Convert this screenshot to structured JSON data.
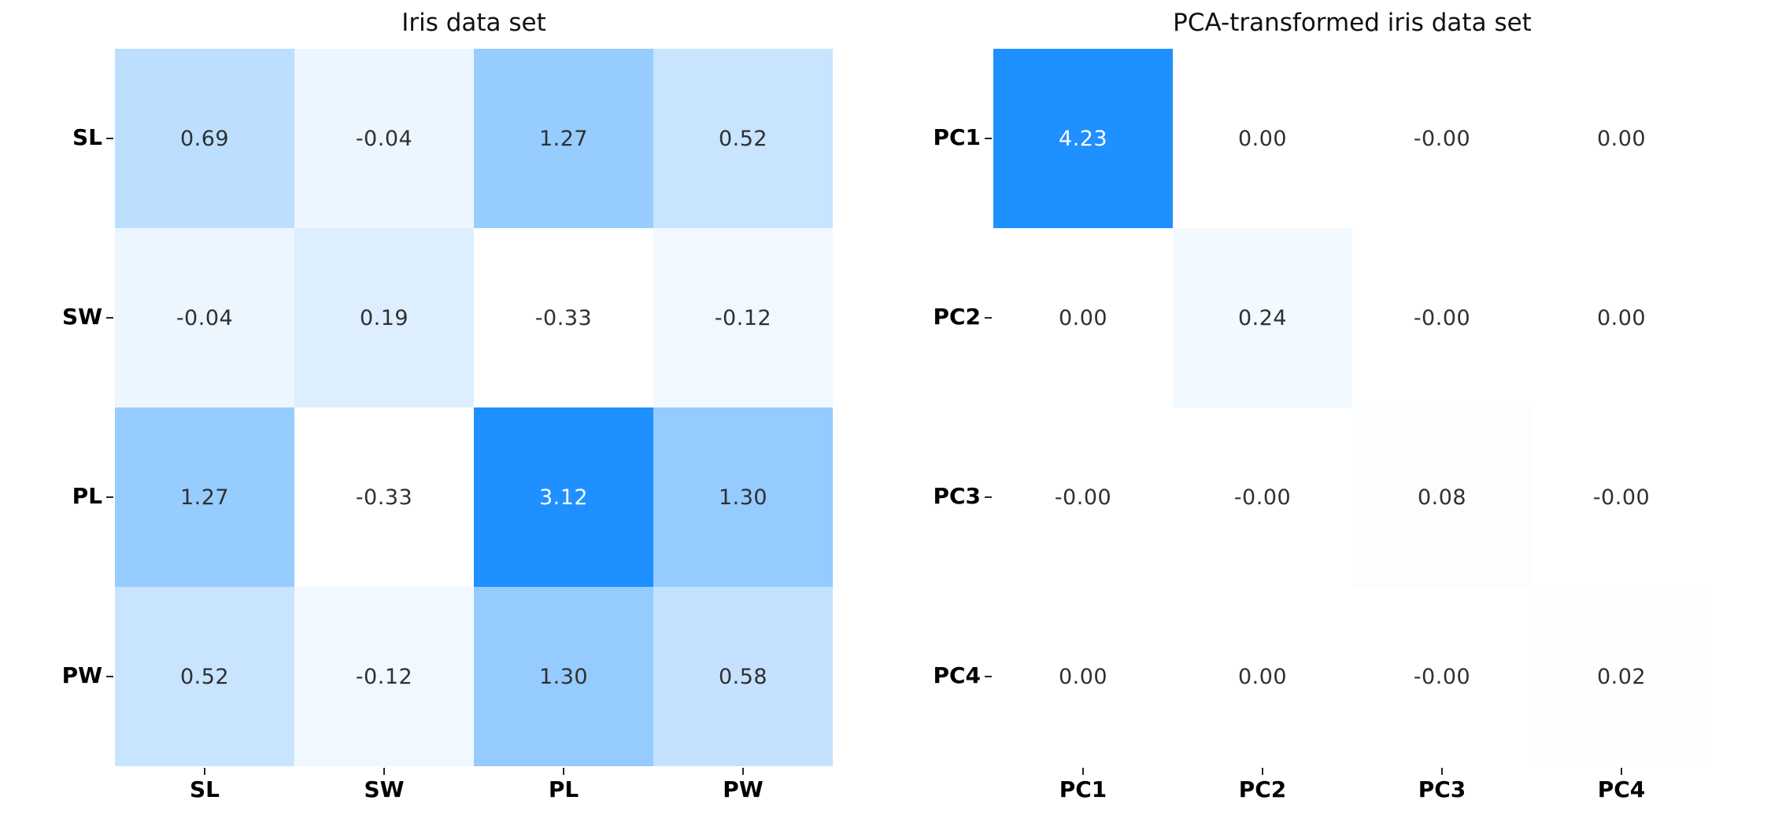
{
  "figure": {
    "background_color": "#ffffff",
    "accent_color": "#1e90ff",
    "annotation_dark_color": "#303030",
    "annotation_light_color": "#ffffff",
    "label_color": "#000000",
    "title_color": "#111111"
  },
  "chart_data": [
    {
      "type": "heatmap",
      "title": "Iris data set",
      "row_labels": [
        "SL",
        "SW",
        "PL",
        "PW"
      ],
      "col_labels": [
        "SL",
        "SW",
        "PL",
        "PW"
      ],
      "values": [
        [
          0.69,
          -0.04,
          1.27,
          0.52
        ],
        [
          -0.04,
          0.19,
          -0.33,
          -0.12
        ],
        [
          1.27,
          -0.33,
          3.12,
          1.3
        ],
        [
          0.52,
          -0.12,
          1.3,
          0.58
        ]
      ],
      "cell_text": [
        [
          "0.69",
          "-0.04",
          "1.27",
          "0.52"
        ],
        [
          "-0.04",
          "0.19",
          "-0.33",
          "-0.12"
        ],
        [
          "1.27",
          "-0.33",
          "3.12",
          "1.30"
        ],
        [
          "0.52",
          "-0.12",
          "1.30",
          "0.58"
        ]
      ],
      "vmin": -0.33,
      "vmax": 3.12,
      "colormap": "linear white to dodgerblue",
      "grid": "off",
      "legend": "none"
    },
    {
      "type": "heatmap",
      "title": "PCA-transformed iris data set",
      "row_labels": [
        "PC1",
        "PC2",
        "PC3",
        "PC4"
      ],
      "col_labels": [
        "PC1",
        "PC2",
        "PC3",
        "PC4"
      ],
      "values": [
        [
          4.23,
          0.0,
          0.0,
          0.0
        ],
        [
          0.0,
          0.24,
          0.0,
          0.0
        ],
        [
          0.0,
          0.0,
          0.08,
          0.0
        ],
        [
          0.0,
          0.0,
          0.0,
          0.02
        ]
      ],
      "cell_text": [
        [
          "4.23",
          "0.00",
          "-0.00",
          "0.00"
        ],
        [
          "0.00",
          "0.24",
          "-0.00",
          "0.00"
        ],
        [
          "-0.00",
          "-0.00",
          "0.08",
          "-0.00"
        ],
        [
          "0.00",
          "0.00",
          "-0.00",
          "0.02"
        ]
      ],
      "vmin": 0.0,
      "vmax": 4.23,
      "colormap": "linear white to dodgerblue",
      "grid": "off",
      "legend": "none"
    }
  ]
}
